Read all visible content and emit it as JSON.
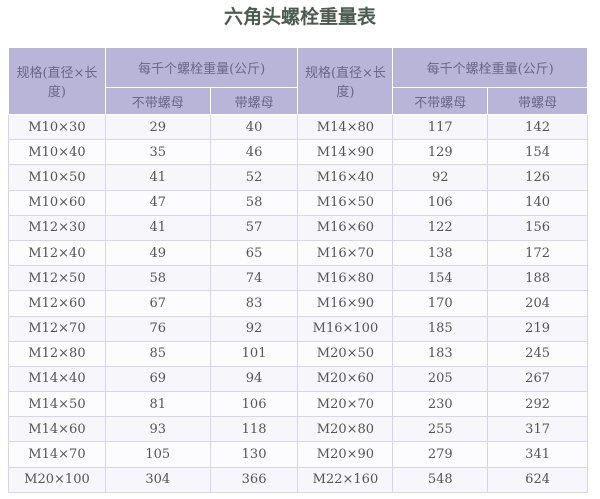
{
  "title": "六角头螺栓重量表",
  "headers": {
    "spec": "规格(直径×长度)",
    "weight": "每千个螺栓重量(公斤)",
    "no_nut": "不带螺母",
    "with_nut": "带螺母"
  },
  "left": [
    [
      "M10×30",
      "29",
      "40"
    ],
    [
      "M10×40",
      "35",
      "46"
    ],
    [
      "M10×50",
      "41",
      "52"
    ],
    [
      "M10×60",
      "47",
      "58"
    ],
    [
      "M12×30",
      "41",
      "57"
    ],
    [
      "M12×40",
      "49",
      "65"
    ],
    [
      "M12×50",
      "58",
      "74"
    ],
    [
      "M12×60",
      "67",
      "83"
    ],
    [
      "M12×70",
      "76",
      "92"
    ],
    [
      "M12×80",
      "85",
      "101"
    ],
    [
      "M14×40",
      "69",
      "94"
    ],
    [
      "M14×50",
      "81",
      "106"
    ],
    [
      "M14×60",
      "93",
      "118"
    ],
    [
      "M14×70",
      "105",
      "130"
    ],
    [
      "M20×100",
      "304",
      "366"
    ]
  ],
  "right": [
    [
      "M14×80",
      "117",
      "142"
    ],
    [
      "M14×90",
      "129",
      "154"
    ],
    [
      "M16×40",
      "92",
      "126"
    ],
    [
      "M16×50",
      "106",
      "140"
    ],
    [
      "M16×60",
      "122",
      "156"
    ],
    [
      "M16×70",
      "138",
      "172"
    ],
    [
      "M16×80",
      "154",
      "188"
    ],
    [
      "M16×90",
      "170",
      "204"
    ],
    [
      "M16×100",
      "185",
      "219"
    ],
    [
      "M20×50",
      "183",
      "245"
    ],
    [
      "M20×60",
      "205",
      "267"
    ],
    [
      "M20×70",
      "230",
      "292"
    ],
    [
      "M20×80",
      "255",
      "317"
    ],
    [
      "M20×90",
      "279",
      "341"
    ],
    [
      "M22×160",
      "548",
      "624"
    ]
  ]
}
